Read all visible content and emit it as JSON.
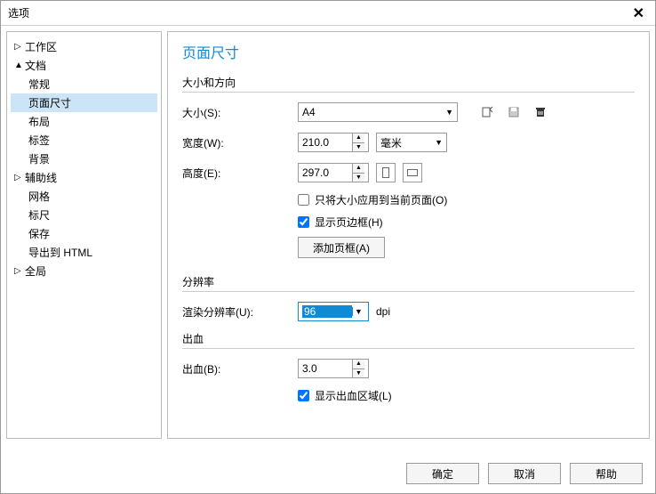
{
  "window": {
    "title": "选项"
  },
  "sidebar": {
    "items": [
      {
        "label": "工作区",
        "level": 0,
        "arrow": "▷"
      },
      {
        "label": "文档",
        "level": 0,
        "arrow": "▲"
      },
      {
        "label": "常规",
        "level": 1
      },
      {
        "label": "页面尺寸",
        "level": 1,
        "selected": true
      },
      {
        "label": "布局",
        "level": 1
      },
      {
        "label": "标签",
        "level": 1
      },
      {
        "label": "背景",
        "level": 1
      },
      {
        "label": "辅助线",
        "level": 0,
        "arrow": "▷"
      },
      {
        "label": "网格",
        "level": 1
      },
      {
        "label": "标尺",
        "level": 1
      },
      {
        "label": "保存",
        "level": 1
      },
      {
        "label": "导出到 HTML",
        "level": 1
      },
      {
        "label": "全局",
        "level": 0,
        "arrow": "▷"
      }
    ]
  },
  "main": {
    "page_title": "页面尺寸",
    "group_size": "大小和方向",
    "group_resolution": "分辨率",
    "group_bleed": "出血",
    "size_label": "大小(S):",
    "size_value": "A4",
    "width_label": "宽度(W):",
    "width_value": "210.0",
    "unit_value": "毫米",
    "height_label": "高度(E):",
    "height_value": "297.0",
    "apply_current_label": "只将大小应用到当前页面(O)",
    "show_border_label": "显示页边框(H)",
    "add_margin_label": "添加页框(A)",
    "render_res_label": "渲染分辨率(U):",
    "render_res_value": "96",
    "dpi_label": "dpi",
    "bleed_label": "出血(B):",
    "bleed_value": "3.0",
    "show_bleed_label": "显示出血区域(L)"
  },
  "footer": {
    "ok": "确定",
    "cancel": "取消",
    "help": "帮助"
  },
  "checkboxes": {
    "apply_current": false,
    "show_border": true,
    "show_bleed": true
  }
}
